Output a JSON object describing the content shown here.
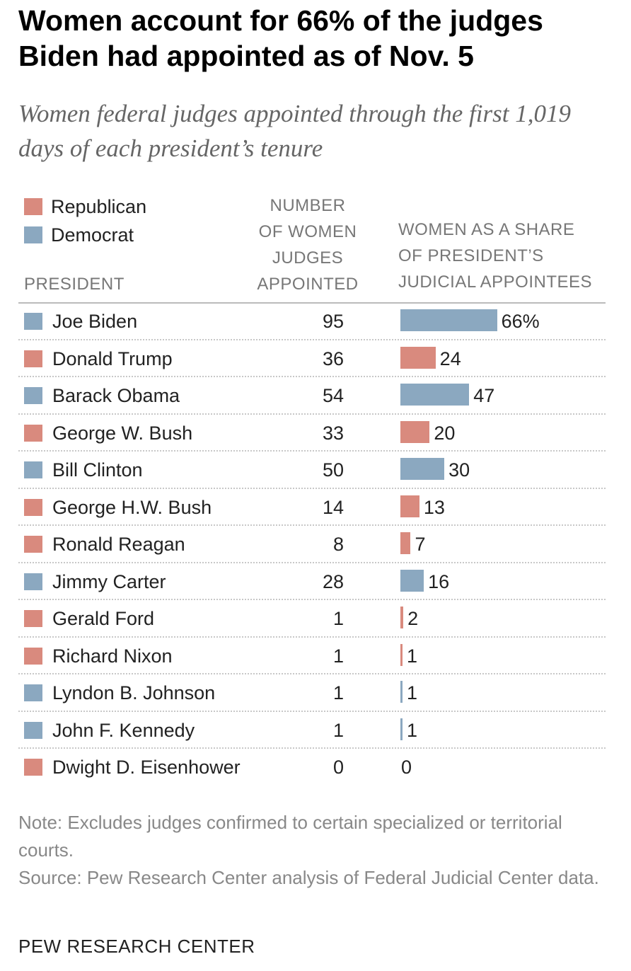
{
  "chart_data": {
    "type": "table",
    "title": "Women account for 66% of the judges Biden had appointed as of Nov. 5",
    "subtitle": "Women federal judges appointed through the first 1,019 days of each president’s tenure",
    "legend": [
      {
        "label": "Republican",
        "color": "#d98a7e"
      },
      {
        "label": "Democrat",
        "color": "#8ba8c0"
      }
    ],
    "column_headers": {
      "president": "PRESIDENT",
      "number": [
        "NUMBER",
        "OF WOMEN",
        "JUDGES",
        "APPOINTED"
      ],
      "share": [
        "WOMEN AS A SHARE",
        "OF PRESIDENT’S",
        "JUDICIAL APPOINTEES"
      ]
    },
    "share_max": 100,
    "rows": [
      {
        "president": "Joe Biden",
        "party": "Democrat",
        "count": "95",
        "share": 66,
        "label": "66%"
      },
      {
        "president": "Donald Trump",
        "party": "Republican",
        "count": "36",
        "share": 24,
        "label": "24"
      },
      {
        "president": "Barack Obama",
        "party": "Democrat",
        "count": "54",
        "share": 47,
        "label": "47"
      },
      {
        "president": "George W. Bush",
        "party": "Republican",
        "count": "33",
        "share": 20,
        "label": "20"
      },
      {
        "president": "Bill Clinton",
        "party": "Democrat",
        "count": "50",
        "share": 30,
        "label": "30"
      },
      {
        "president": "George H.W. Bush",
        "party": "Republican",
        "count": "14",
        "share": 13,
        "label": "13"
      },
      {
        "president": "Ronald Reagan",
        "party": "Republican",
        "count": "8",
        "share": 7,
        "label": "7"
      },
      {
        "president": "Jimmy Carter",
        "party": "Democrat",
        "count": "28",
        "share": 16,
        "label": "16"
      },
      {
        "president": "Gerald Ford",
        "party": "Republican",
        "count": "1",
        "share": 2,
        "label": "2"
      },
      {
        "president": "Richard Nixon",
        "party": "Republican",
        "count": "1",
        "share": 1,
        "label": "1"
      },
      {
        "president": "Lyndon B. Johnson",
        "party": "Democrat",
        "count": "1",
        "share": 1,
        "label": "1"
      },
      {
        "president": "John F. Kennedy",
        "party": "Democrat",
        "count": "1",
        "share": 1,
        "label": "1"
      },
      {
        "president": "Dwight D. Eisenhower",
        "party": "Republican",
        "count": "0",
        "share": 0,
        "label": "0"
      }
    ]
  },
  "notes": {
    "note": "Note: Excludes judges confirmed to certain specialized or territorial courts.",
    "source": "Source: Pew Research Center analysis of Federal Judicial Center data."
  },
  "credit": "PEW RESEARCH CENTER"
}
